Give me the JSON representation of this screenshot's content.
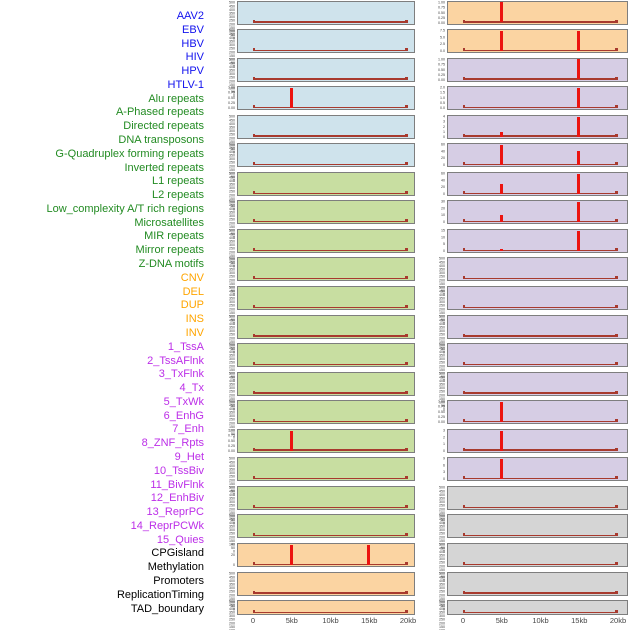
{
  "x_axis_ticks": [
    "0",
    "5kb",
    "10kb",
    "15kb",
    "20kb"
  ],
  "label_color_map": {
    "virus": "#1212EE",
    "repeat": "#228B22",
    "sv": "#FFA500",
    "chromatin": "#BC2EE8",
    "other": "#000000"
  },
  "panel_bg_colors": {
    "virus": "#CFE3EC",
    "repeat": "#C8DEA1",
    "sv": "#FBD4A2",
    "chromatin": "#D6CDE4",
    "other": "#D5D5D5"
  },
  "accent_colors": {
    "spike": "#EC1410",
    "baseline": "#A83A2E",
    "panel_border": "#7E7E7E",
    "tick_text": "#3E3E3E",
    "axis_text": "#464646"
  },
  "row_labels": [
    {
      "text": "AAV2",
      "group": "virus"
    },
    {
      "text": "EBV",
      "group": "virus"
    },
    {
      "text": "HBV",
      "group": "virus"
    },
    {
      "text": "HIV",
      "group": "virus"
    },
    {
      "text": "HPV",
      "group": "virus"
    },
    {
      "text": "HTLV-1",
      "group": "virus"
    },
    {
      "text": "Alu repeats",
      "group": "repeat"
    },
    {
      "text": "A-Phased repeats",
      "group": "repeat"
    },
    {
      "text": "Directed repeats",
      "group": "repeat"
    },
    {
      "text": "DNA transposons",
      "group": "repeat"
    },
    {
      "text": "G-Quadruplex forming repeats",
      "group": "repeat"
    },
    {
      "text": "Inverted repeats",
      "group": "repeat"
    },
    {
      "text": "L1 repeats",
      "group": "repeat"
    },
    {
      "text": "L2 repeats",
      "group": "repeat"
    },
    {
      "text": "Low_complexity A/T rich regions",
      "group": "repeat"
    },
    {
      "text": "Microsatellites",
      "group": "repeat"
    },
    {
      "text": "MIR repeats",
      "group": "repeat"
    },
    {
      "text": "Mirror repeats",
      "group": "repeat"
    },
    {
      "text": "Z-DNA motifs",
      "group": "repeat"
    },
    {
      "text": "CNV",
      "group": "sv"
    },
    {
      "text": "DEL",
      "group": "sv"
    },
    {
      "text": "DUP",
      "group": "sv"
    },
    {
      "text": "INS",
      "group": "sv"
    },
    {
      "text": "INV",
      "group": "sv"
    },
    {
      "text": "1_TssA",
      "group": "chromatin"
    },
    {
      "text": "2_TssAFlnk",
      "group": "chromatin"
    },
    {
      "text": "3_TxFlnk",
      "group": "chromatin"
    },
    {
      "text": "4_Tx",
      "group": "chromatin"
    },
    {
      "text": "5_TxWk",
      "group": "chromatin"
    },
    {
      "text": "6_EnhG",
      "group": "chromatin"
    },
    {
      "text": "7_Enh",
      "group": "chromatin"
    },
    {
      "text": "8_ZNF_Rpts",
      "group": "chromatin"
    },
    {
      "text": "9_Het",
      "group": "chromatin"
    },
    {
      "text": "10_TssBiv",
      "group": "chromatin"
    },
    {
      "text": "11_BivFlnk",
      "group": "chromatin"
    },
    {
      "text": "12_EnhBiv",
      "group": "chromatin"
    },
    {
      "text": "13_ReprPC",
      "group": "chromatin"
    },
    {
      "text": "14_ReprPCWk",
      "group": "chromatin"
    },
    {
      "text": "15_Quies",
      "group": "chromatin"
    },
    {
      "text": "CPGisland",
      "group": "other"
    },
    {
      "text": "Methylation",
      "group": "other"
    },
    {
      "text": "Promoters",
      "group": "other"
    },
    {
      "text": "ReplicationTiming",
      "group": "other"
    },
    {
      "text": "TAD_boundary",
      "group": "other"
    }
  ],
  "chart_data": {
    "type": "line",
    "description": "44 genomic feature signal tracks (small multiples) in 22 rows x 2 columns; red spikes mark feature density peaks near 5kb and 15kb; dark red baseline at 0",
    "x_range_kb": [
      0,
      20
    ],
    "x_tick_labels": [
      "0",
      "5kb",
      "10kb",
      "15kb",
      "20kb"
    ],
    "dense_yticks": [
      "500",
      "450",
      "400",
      "350",
      "300",
      "250",
      "200",
      "150",
      "100",
      "50",
      "0"
    ],
    "spike_note": "frac = spike height as fraction of panel y-range",
    "panels": [
      {
        "name": "AAV2",
        "group": "virus",
        "yticks": "dense",
        "spikes": []
      },
      {
        "name": "EBV",
        "group": "virus",
        "yticks": "dense",
        "spikes": []
      },
      {
        "name": "HBV",
        "group": "virus",
        "yticks": "dense",
        "spikes": []
      },
      {
        "name": "HIV",
        "group": "virus",
        "yticks": [
          "1.00",
          "0.75",
          "0.50",
          "0.25",
          "0.00"
        ],
        "spikes": [
          {
            "x_kb": 5,
            "frac": 1
          }
        ]
      },
      {
        "name": "HPV",
        "group": "virus",
        "yticks": "dense",
        "spikes": []
      },
      {
        "name": "HTLV-1",
        "group": "virus",
        "yticks": "dense",
        "spikes": []
      },
      {
        "name": "Alu repeats",
        "group": "repeat",
        "yticks": "dense",
        "spikes": []
      },
      {
        "name": "A-Phased repeats",
        "group": "repeat",
        "yticks": "dense",
        "spikes": []
      },
      {
        "name": "Directed repeats",
        "group": "repeat",
        "yticks": "dense",
        "spikes": []
      },
      {
        "name": "DNA transposons",
        "group": "repeat",
        "yticks": "dense",
        "spikes": []
      },
      {
        "name": "G-Quadruplex forming repeats",
        "group": "repeat",
        "yticks": "dense",
        "spikes": []
      },
      {
        "name": "Inverted repeats",
        "group": "repeat",
        "yticks": "dense",
        "spikes": []
      },
      {
        "name": "L1 repeats",
        "group": "repeat",
        "yticks": "dense",
        "spikes": []
      },
      {
        "name": "L2 repeats",
        "group": "repeat",
        "yticks": "dense",
        "spikes": []
      },
      {
        "name": "Low_complexity A/T rich regions",
        "group": "repeat",
        "yticks": "dense",
        "spikes": []
      },
      {
        "name": "Microsatellites",
        "group": "repeat",
        "yticks": [
          "1.00",
          "0.75",
          "0.50",
          "0.25",
          "0.00"
        ],
        "spikes": [
          {
            "x_kb": 5,
            "frac": 1
          }
        ]
      },
      {
        "name": "MIR repeats",
        "group": "repeat",
        "yticks": "dense",
        "spikes": []
      },
      {
        "name": "Mirror repeats",
        "group": "repeat",
        "yticks": "dense",
        "spikes": []
      },
      {
        "name": "Z-DNA motifs",
        "group": "repeat",
        "yticks": "dense",
        "spikes": []
      },
      {
        "name": "CNV",
        "group": "sv",
        "yticks": [
          "40",
          "20",
          "0"
        ],
        "spikes": [
          {
            "x_kb": 5,
            "frac": 1
          },
          {
            "x_kb": 15,
            "frac": 1
          }
        ]
      },
      {
        "name": "DEL",
        "group": "sv",
        "yticks": "dense",
        "spikes": []
      },
      {
        "name": "DUP",
        "group": "sv",
        "yticks": "dense",
        "spikes": []
      },
      {
        "name": "INS",
        "group": "sv",
        "yticks": [
          "1.00",
          "0.75",
          "0.50",
          "0.25",
          "0.00"
        ],
        "spikes": [
          {
            "x_kb": 5,
            "frac": 1
          }
        ]
      },
      {
        "name": "INV",
        "group": "sv",
        "yticks": [
          "7.5",
          "5.0",
          "2.5",
          "0.0"
        ],
        "spikes": [
          {
            "x_kb": 5,
            "frac": 1
          },
          {
            "x_kb": 15,
            "frac": 1
          }
        ]
      },
      {
        "name": "1_TssA",
        "group": "chromatin",
        "yticks": [
          "1.00",
          "0.75",
          "0.50",
          "0.25",
          "0.00"
        ],
        "spikes": [
          {
            "x_kb": 15,
            "frac": 1
          }
        ]
      },
      {
        "name": "2_TssAFlnk",
        "group": "chromatin",
        "yticks": [
          "2.0",
          "1.5",
          "1.0",
          "0.5",
          "0.0"
        ],
        "spikes": [
          {
            "x_kb": 15,
            "frac": 1
          }
        ]
      },
      {
        "name": "3_TxFlnk",
        "group": "chromatin",
        "yticks": [
          "4",
          "3",
          "2",
          "1",
          "0"
        ],
        "spikes": [
          {
            "x_kb": 5,
            "frac": 0.25
          },
          {
            "x_kb": 15,
            "frac": 1
          }
        ]
      },
      {
        "name": "4_Tx",
        "group": "chromatin",
        "yticks": [
          "60",
          "40",
          "20",
          "0"
        ],
        "spikes": [
          {
            "x_kb": 5,
            "frac": 1
          },
          {
            "x_kb": 15,
            "frac": 0.72
          }
        ]
      },
      {
        "name": "5_TxWk",
        "group": "chromatin",
        "yticks": [
          "60",
          "40",
          "20",
          "0"
        ],
        "spikes": [
          {
            "x_kb": 5,
            "frac": 0.46
          },
          {
            "x_kb": 15,
            "frac": 1
          }
        ]
      },
      {
        "name": "6_EnhG",
        "group": "chromatin",
        "yticks": [
          "30",
          "20",
          "10",
          "0"
        ],
        "spikes": [
          {
            "x_kb": 5,
            "frac": 0.38
          },
          {
            "x_kb": 15,
            "frac": 1
          }
        ]
      },
      {
        "name": "7_Enh",
        "group": "chromatin",
        "yticks": [
          "15",
          "10",
          "5",
          "0"
        ],
        "spikes": [
          {
            "x_kb": 5,
            "frac": 0.07
          },
          {
            "x_kb": 15,
            "frac": 1
          }
        ]
      },
      {
        "name": "8_ZNF_Rpts",
        "group": "chromatin",
        "yticks": "dense",
        "spikes": []
      },
      {
        "name": "9_Het",
        "group": "chromatin",
        "yticks": "dense",
        "spikes": []
      },
      {
        "name": "10_TssBiv",
        "group": "chromatin",
        "yticks": "dense",
        "spikes": []
      },
      {
        "name": "11_BivFlnk",
        "group": "chromatin",
        "yticks": "dense",
        "spikes": []
      },
      {
        "name": "12_EnhBiv",
        "group": "chromatin",
        "yticks": "dense",
        "spikes": []
      },
      {
        "name": "13_ReprPC",
        "group": "chromatin",
        "yticks": [
          "1.00",
          "0.75",
          "0.50",
          "0.25",
          "0.00"
        ],
        "spikes": [
          {
            "x_kb": 5,
            "frac": 1
          }
        ]
      },
      {
        "name": "14_ReprPCWk",
        "group": "chromatin",
        "yticks": [
          "3",
          "2",
          "1",
          "0"
        ],
        "spikes": [
          {
            "x_kb": 5,
            "frac": 1
          }
        ]
      },
      {
        "name": "15_Quies",
        "group": "chromatin",
        "yticks": [
          "9",
          "6",
          "3",
          "0"
        ],
        "spikes": [
          {
            "x_kb": 5,
            "frac": 1
          }
        ]
      },
      {
        "name": "CPGisland",
        "group": "other",
        "yticks": "dense",
        "spikes": []
      },
      {
        "name": "Methylation",
        "group": "other",
        "yticks": "dense",
        "spikes": []
      },
      {
        "name": "Promoters",
        "group": "other",
        "yticks": "dense",
        "spikes": []
      },
      {
        "name": "ReplicationTiming",
        "group": "other",
        "yticks": "dense",
        "spikes": []
      },
      {
        "name": "TAD_boundary",
        "group": "other",
        "yticks": "dense",
        "spikes": []
      }
    ]
  }
}
